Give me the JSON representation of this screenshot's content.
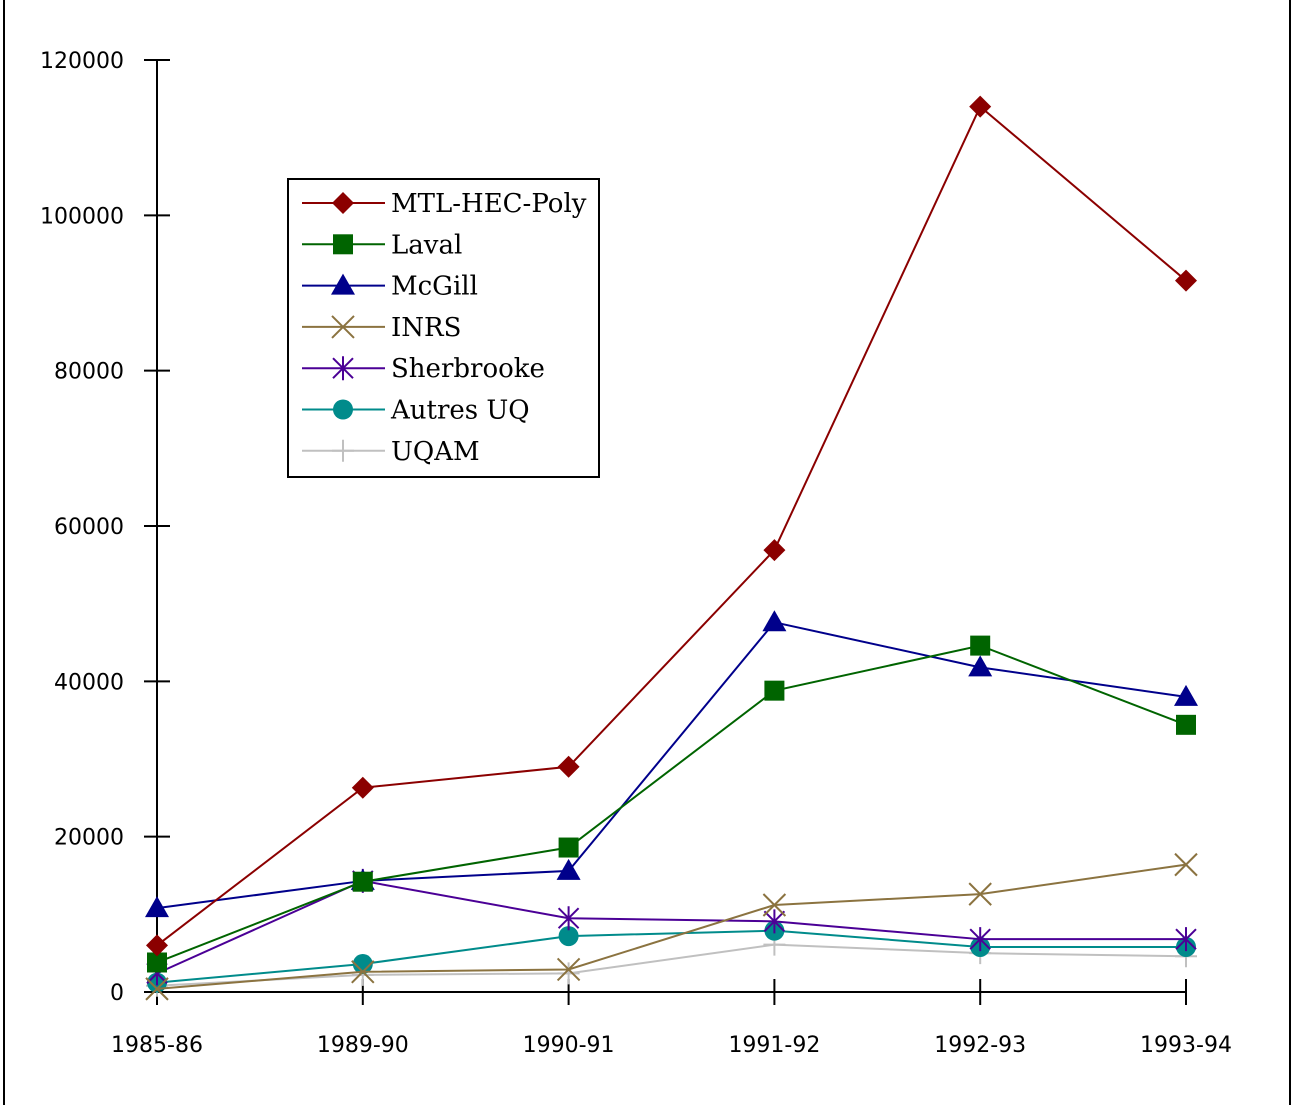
{
  "chart_data": {
    "type": "line",
    "title": "",
    "xlabel": "",
    "ylabel": "",
    "categories": [
      "1985-86",
      "1989-90",
      "1990-91",
      "1991-92",
      "1992-93",
      "1993-94"
    ],
    "ylim": [
      0,
      120000
    ],
    "yticks": [
      0,
      20000,
      40000,
      60000,
      80000,
      100000,
      120000
    ],
    "grid": false,
    "legend_position": "upper-left",
    "series": [
      {
        "name": "MTL-HEC-Poly",
        "color": "#8b0000",
        "marker": "diamond",
        "values": [
          6000,
          26300,
          29000,
          56900,
          114000,
          91600
        ]
      },
      {
        "name": "Laval",
        "color": "#006400",
        "marker": "square",
        "values": [
          3800,
          14200,
          18600,
          38800,
          44600,
          34400
        ]
      },
      {
        "name": "McGill",
        "color": "#00008b",
        "marker": "triangle",
        "values": [
          10800,
          14300,
          15600,
          47600,
          41800,
          38000
        ]
      },
      {
        "name": "INRS",
        "color": "#8b7340",
        "marker": "x",
        "values": [
          400,
          2600,
          2900,
          11200,
          12600,
          16400
        ]
      },
      {
        "name": "Sherbrooke",
        "color": "#4b0096",
        "marker": "asterisk",
        "values": [
          2400,
          14300,
          9500,
          9100,
          6800,
          6800
        ]
      },
      {
        "name": "Autres UQ",
        "color": "#008b8b",
        "marker": "circle",
        "values": [
          1200,
          3600,
          7200,
          7900,
          5800,
          5800
        ]
      },
      {
        "name": "UQAM",
        "color": "#c0c0c0",
        "marker": "plus",
        "values": [
          800,
          2200,
          2400,
          6100,
          5000,
          4600
        ]
      }
    ]
  }
}
